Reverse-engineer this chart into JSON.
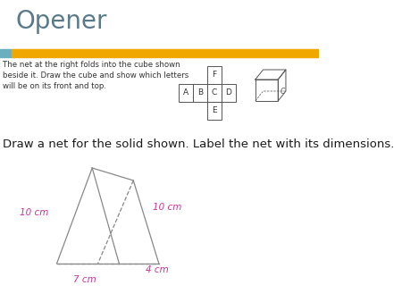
{
  "title": "Opener",
  "title_fontsize": 20,
  "title_color": "#5a7a8a",
  "bar_blue": "#6aafc0",
  "bar_gold": "#f0a800",
  "question1_text": "The net at the right folds into the cube shown\nbeside it. Draw the cube and show which letters\nwill be on its front and top.",
  "question1_fontsize": 6.2,
  "question2_text": "Draw a net for the solid shown. Label the net with its dimensions.",
  "question2_fontsize": 9.5,
  "net_labels": [
    "A",
    "B",
    "C",
    "D",
    "F",
    "E"
  ],
  "dim_color": "#cc3399",
  "dim_10cm_left": "10 cm",
  "dim_10cm_right": "10 cm",
  "dim_7cm": "7 cm",
  "dim_4cm": "4 cm",
  "background_color": "#ffffff",
  "gray": "#888888",
  "dark_gray": "#555555"
}
